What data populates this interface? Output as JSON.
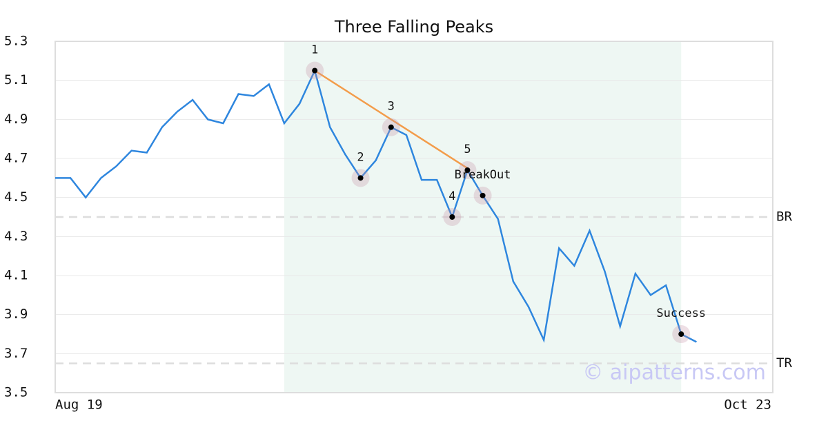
{
  "chart_data": {
    "type": "line",
    "title": "Three Falling Peaks",
    "categories": [
      "Aug 19",
      null,
      null,
      null,
      null,
      null,
      null,
      null,
      null,
      null,
      null,
      null,
      null,
      null,
      null,
      null,
      null,
      null,
      null,
      null,
      null,
      null,
      null,
      null,
      null,
      null,
      null,
      null,
      null,
      null,
      null,
      null,
      null,
      null,
      null,
      null,
      null,
      null,
      null,
      null,
      null,
      null,
      null,
      null,
      null,
      null,
      null,
      "Oct 23"
    ],
    "values": [
      4.6,
      4.6,
      4.5,
      4.6,
      4.66,
      4.74,
      4.73,
      4.86,
      4.94,
      5.0,
      4.9,
      4.88,
      5.03,
      5.02,
      5.08,
      4.88,
      4.98,
      5.15,
      4.86,
      4.72,
      4.6,
      4.69,
      4.86,
      4.82,
      4.59,
      4.59,
      4.4,
      4.64,
      4.51,
      4.39,
      4.07,
      3.94,
      3.77,
      4.24,
      4.15,
      4.33,
      4.12,
      3.84,
      4.11,
      4.0,
      4.05,
      3.8,
      3.76,
      null,
      null,
      null,
      null,
      null
    ],
    "color": "#2e86de",
    "point_labels": [
      null,
      null,
      null,
      null,
      null,
      null,
      null,
      null,
      null,
      null,
      null,
      null,
      null,
      null,
      null,
      null,
      null,
      "1",
      null,
      null,
      "2",
      null,
      "3",
      null,
      null,
      null,
      "4",
      "5",
      "BreakOut",
      null,
      null,
      null,
      null,
      null,
      null,
      null,
      null,
      null,
      null,
      null,
      null,
      "Success",
      null,
      null,
      null,
      null,
      null,
      null
    ],
    "trend": {
      "color": "#f39c4a",
      "values": [
        null,
        null,
        null,
        null,
        null,
        null,
        null,
        null,
        null,
        null,
        null,
        null,
        null,
        null,
        null,
        null,
        null,
        5.15,
        null,
        null,
        null,
        null,
        null,
        null,
        null,
        null,
        null,
        4.65,
        null,
        null,
        null,
        null,
        null,
        null,
        null,
        null,
        null,
        null,
        null,
        null,
        null,
        null,
        null,
        null,
        null,
        null,
        null,
        null
      ]
    },
    "shade_range": [
      15,
      41
    ],
    "shade_color": "#eef7f3",
    "levels": [
      {
        "label": "BR",
        "value": 4.4
      },
      {
        "label": "TR",
        "value": 3.65
      }
    ],
    "ylim": [
      3.5,
      5.3
    ],
    "yticks": [
      3.5,
      3.7,
      3.9,
      4.1,
      4.3,
      4.5,
      4.7,
      4.9,
      5.1,
      5.3
    ],
    "grid": true,
    "watermark": "© aipatterns.com"
  }
}
